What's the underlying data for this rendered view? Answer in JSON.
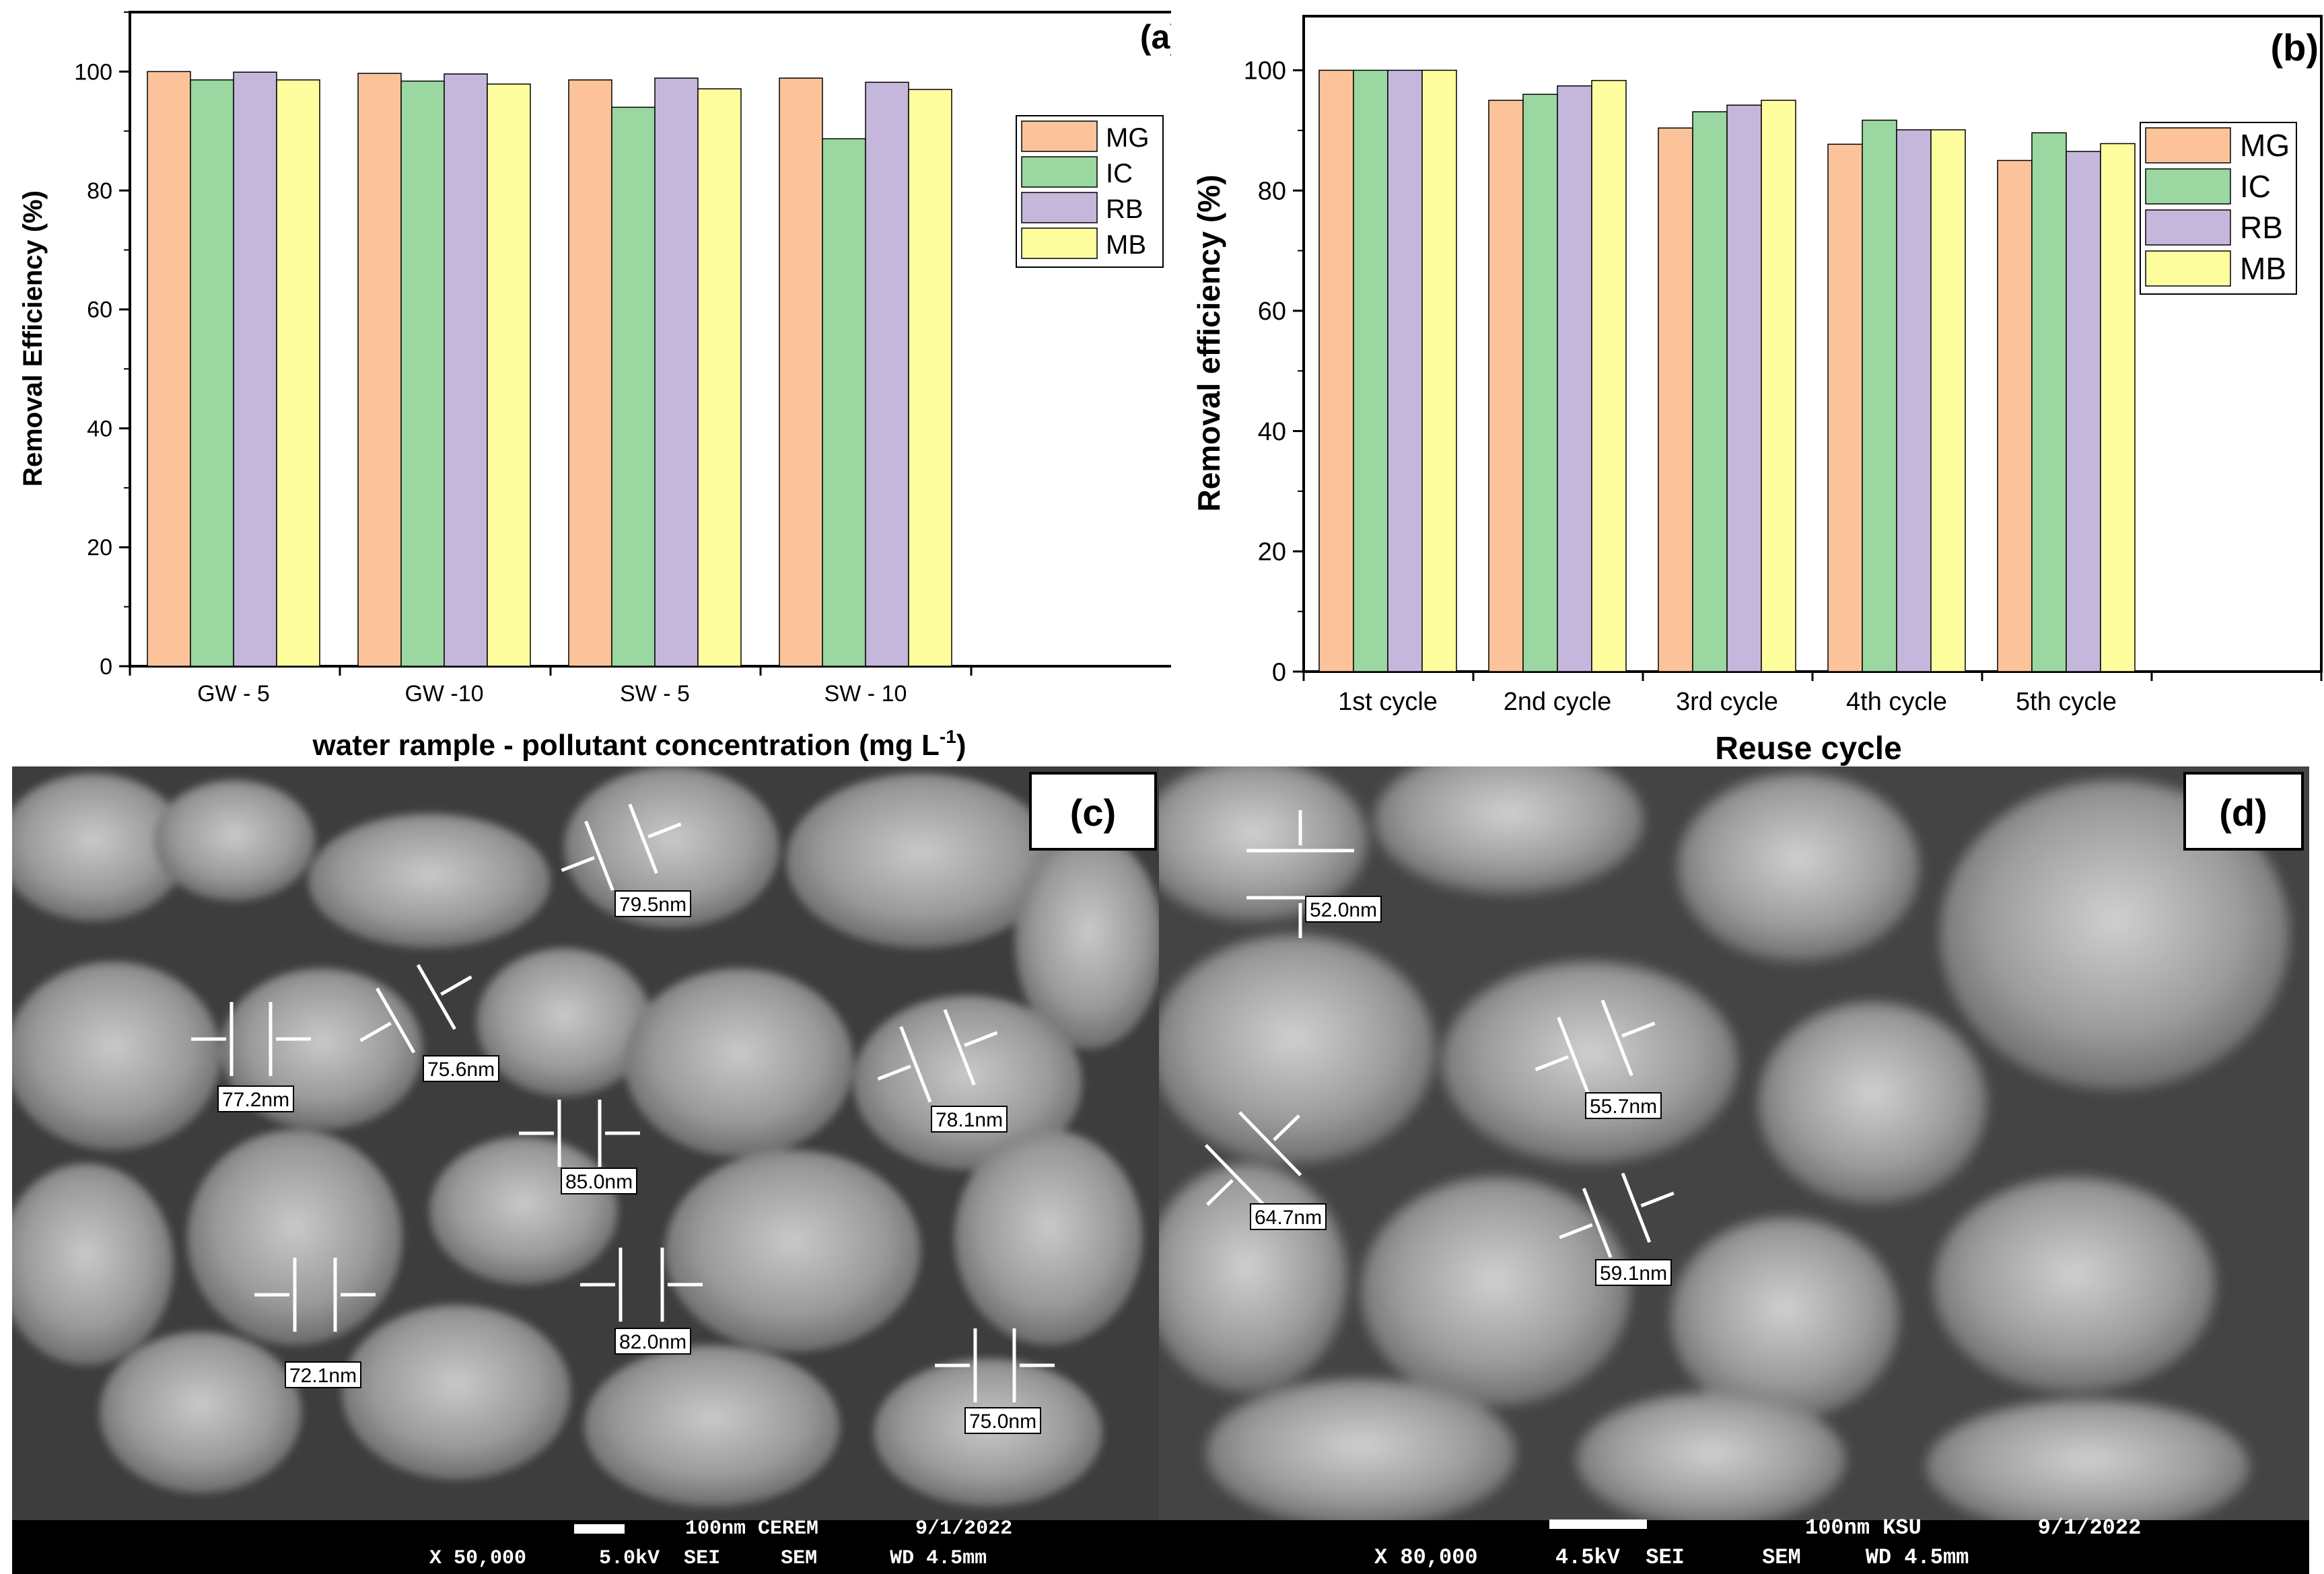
{
  "colors": {
    "MG": "#FCC39A",
    "IC": "#9AD7A1",
    "RB": "#C5B6DB",
    "MB": "#FFFE9F",
    "axis": "#000000",
    "sem_bg": "#3a3a3a"
  },
  "chart_data": [
    {
      "panel_label": "(a)",
      "type": "bar",
      "categories": [
        "GW - 5",
        "GW -10",
        "SW - 5",
        "SW - 10"
      ],
      "series": [
        {
          "name": "MG",
          "values": [
            100,
            99.7,
            98.6,
            98.9
          ]
        },
        {
          "name": "IC",
          "values": [
            98.6,
            98.4,
            94,
            88.7
          ]
        },
        {
          "name": "RB",
          "values": [
            99.9,
            99.6,
            98.9,
            98.2
          ]
        },
        {
          "name": "MB",
          "values": [
            98.6,
            97.9,
            97.1,
            97
          ]
        }
      ],
      "xlabel": "water rample - pollutant concentration (mg L",
      "xlabel_sup": "-1",
      "xlabel_end": ")",
      "ylabel": "Removal Efficiency (%)",
      "ylim": [
        0,
        110
      ],
      "yticks": [
        "0",
        "20",
        "40",
        "60",
        "80",
        "100"
      ],
      "legend": [
        "MG",
        "IC",
        "RB",
        "MB"
      ],
      "legend_position": "top-right",
      "grid": false
    },
    {
      "panel_label": "(b)",
      "type": "bar",
      "categories": [
        "1st cycle",
        "2nd cycle",
        "3rd cycle",
        "4th cycle",
        "5th cycle"
      ],
      "series": [
        {
          "name": "MG",
          "values": [
            100,
            95,
            90.4,
            87.7,
            85
          ]
        },
        {
          "name": "IC",
          "values": [
            100,
            96,
            93.1,
            91.7,
            89.6
          ]
        },
        {
          "name": "RB",
          "values": [
            100,
            97.4,
            94.2,
            90.1,
            86.5
          ]
        },
        {
          "name": "MB",
          "values": [
            100,
            98.3,
            95,
            90.1,
            87.8
          ]
        }
      ],
      "xlabel": "Reuse cycle",
      "ylabel": "Removal efficiency (%)",
      "ylim": [
        0,
        109
      ],
      "yticks": [
        "0",
        "20",
        "40",
        "60",
        "80",
        "100"
      ],
      "legend": [
        "MG",
        "IC",
        "RB",
        "MB"
      ],
      "legend_position": "top-right",
      "grid": false
    }
  ],
  "sem_c": {
    "panel_label": "(c)",
    "measurements": [
      "79.5nm",
      "75.6nm",
      "77.2nm",
      "78.1nm",
      "85.0nm",
      "72.1nm",
      "82.0nm",
      "75.0nm"
    ],
    "footer_line1": "100nm CEREM        9/1/2022",
    "footer_line2": "X 50,000      5.0kV  SEI     SEM      WD 4.5mm"
  },
  "sem_d": {
    "panel_label": "(d)",
    "measurements": [
      "52.0nm",
      "55.7nm",
      "64.7nm",
      "59.1nm"
    ],
    "footer_line1": "100nm KSU         9/1/2022",
    "footer_line2": "X 80,000      4.5kV  SEI      SEM     WD 4.5mm"
  }
}
